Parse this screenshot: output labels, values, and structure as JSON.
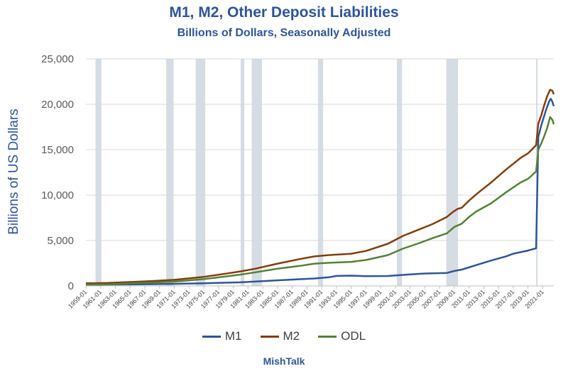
{
  "chart_data": {
    "type": "line",
    "title": "M1, M2, Other Deposit Liabilities",
    "subtitle": "Billions of Dollars, Seasonally Adjusted",
    "xlabel": "",
    "ylabel": "Billions of US Dollars",
    "ylim": [
      0,
      25000
    ],
    "yticks": [
      0,
      5000,
      10000,
      15000,
      20000,
      25000
    ],
    "ytick_labels": [
      "0",
      "5,000",
      "10,000",
      "15,000",
      "20,000",
      "25,000"
    ],
    "xlim": [
      1959.0,
      2022.5
    ],
    "xtick_labels": [
      "1959-01",
      "1961-01",
      "1963-01",
      "1965-01",
      "1967-01",
      "1969-01",
      "1971-01",
      "1973-01",
      "1975-01",
      "1977-01",
      "1979-01",
      "1981-01",
      "1983-01",
      "1985-01",
      "1987-01",
      "1989-01",
      "1991-01",
      "1993-01",
      "1995-01",
      "1997-01",
      "1999-01",
      "2001-01",
      "2003-01",
      "2005-01",
      "2007-01",
      "2009-01",
      "2011-01",
      "2013-01",
      "2015-01",
      "2017-01",
      "2019-01",
      "2021-01"
    ],
    "grid": true,
    "legend_position": "bottom",
    "recessions": [
      [
        1960.3,
        1961.1
      ],
      [
        1969.9,
        1970.9
      ],
      [
        1973.9,
        1975.2
      ],
      [
        1980.0,
        1980.5
      ],
      [
        1981.5,
        1982.9
      ],
      [
        1990.5,
        1991.2
      ],
      [
        2001.2,
        2001.9
      ],
      [
        2007.9,
        2009.5
      ],
      [
        2020.1,
        2020.3
      ]
    ],
    "series": [
      {
        "name": "M1",
        "color": "#2f5597",
        "points": [
          [
            1959,
            140
          ],
          [
            1965,
            165
          ],
          [
            1970,
            210
          ],
          [
            1975,
            290
          ],
          [
            1980,
            400
          ],
          [
            1985,
            620
          ],
          [
            1990,
            820
          ],
          [
            1992,
            950
          ],
          [
            1993,
            1100
          ],
          [
            1995,
            1130
          ],
          [
            1997,
            1070
          ],
          [
            2000,
            1090
          ],
          [
            2003,
            1270
          ],
          [
            2005,
            1370
          ],
          [
            2008,
            1430
          ],
          [
            2009,
            1650
          ],
          [
            2010,
            1800
          ],
          [
            2012,
            2300
          ],
          [
            2014,
            2800
          ],
          [
            2016,
            3250
          ],
          [
            2017,
            3550
          ],
          [
            2019,
            3900
          ],
          [
            2020.1,
            4150
          ],
          [
            2020.4,
            16400
          ],
          [
            2020.8,
            17700
          ],
          [
            2021.0,
            18200
          ],
          [
            2021.5,
            19500
          ],
          [
            2021.9,
            20400
          ],
          [
            2022.1,
            20600
          ],
          [
            2022.3,
            20300
          ],
          [
            2022.5,
            19800
          ]
        ]
      },
      {
        "name": "M2",
        "color": "#843c0c",
        "points": [
          [
            1959,
            290
          ],
          [
            1962,
            330
          ],
          [
            1965,
            430
          ],
          [
            1968,
            540
          ],
          [
            1971,
            670
          ],
          [
            1975,
            1000
          ],
          [
            1978,
            1350
          ],
          [
            1980,
            1600
          ],
          [
            1982,
            1900
          ],
          [
            1985,
            2450
          ],
          [
            1988,
            2950
          ],
          [
            1990,
            3250
          ],
          [
            1992,
            3400
          ],
          [
            1995,
            3550
          ],
          [
            1997,
            3850
          ],
          [
            2000,
            4650
          ],
          [
            2002,
            5500
          ],
          [
            2004,
            6150
          ],
          [
            2006,
            6800
          ],
          [
            2008,
            7600
          ],
          [
            2008.9,
            8200
          ],
          [
            2009.5,
            8500
          ],
          [
            2010,
            8600
          ],
          [
            2011,
            9400
          ],
          [
            2012,
            10100
          ],
          [
            2014,
            11400
          ],
          [
            2016,
            12800
          ],
          [
            2018,
            14100
          ],
          [
            2019,
            14600
          ],
          [
            2020.1,
            15500
          ],
          [
            2020.4,
            17900
          ],
          [
            2020.8,
            18800
          ],
          [
            2021.2,
            19900
          ],
          [
            2021.6,
            20900
          ],
          [
            2022.0,
            21600
          ],
          [
            2022.3,
            21500
          ],
          [
            2022.5,
            21100
          ]
        ]
      },
      {
        "name": "ODL",
        "color": "#548235",
        "points": [
          [
            1959,
            150
          ],
          [
            1962,
            180
          ],
          [
            1965,
            280
          ],
          [
            1968,
            370
          ],
          [
            1971,
            480
          ],
          [
            1975,
            750
          ],
          [
            1978,
            1050
          ],
          [
            1980,
            1250
          ],
          [
            1982,
            1500
          ],
          [
            1985,
            1900
          ],
          [
            1988,
            2200
          ],
          [
            1990,
            2450
          ],
          [
            1992,
            2550
          ],
          [
            1995,
            2650
          ],
          [
            1997,
            2850
          ],
          [
            2000,
            3400
          ],
          [
            2002,
            4100
          ],
          [
            2004,
            4650
          ],
          [
            2006,
            5250
          ],
          [
            2008,
            5800
          ],
          [
            2009,
            6500
          ],
          [
            2010,
            6850
          ],
          [
            2011,
            7600
          ],
          [
            2012,
            8200
          ],
          [
            2014,
            9100
          ],
          [
            2016,
            10300
          ],
          [
            2018,
            11400
          ],
          [
            2019,
            11800
          ],
          [
            2020.1,
            12600
          ],
          [
            2020.4,
            15000
          ],
          [
            2020.8,
            15700
          ],
          [
            2021.2,
            16500
          ],
          [
            2021.6,
            17400
          ],
          [
            2022.0,
            18600
          ],
          [
            2022.3,
            18300
          ],
          [
            2022.5,
            17800
          ]
        ]
      }
    ]
  },
  "legend": {
    "m1_label": "M1",
    "m2_label": "M2",
    "odl_label": "ODL"
  },
  "footer": {
    "source": "MishTalk"
  },
  "colors": {
    "title": "#2f5597",
    "recession_band": "#d6dce4",
    "gridline": "#d9d9d9"
  }
}
